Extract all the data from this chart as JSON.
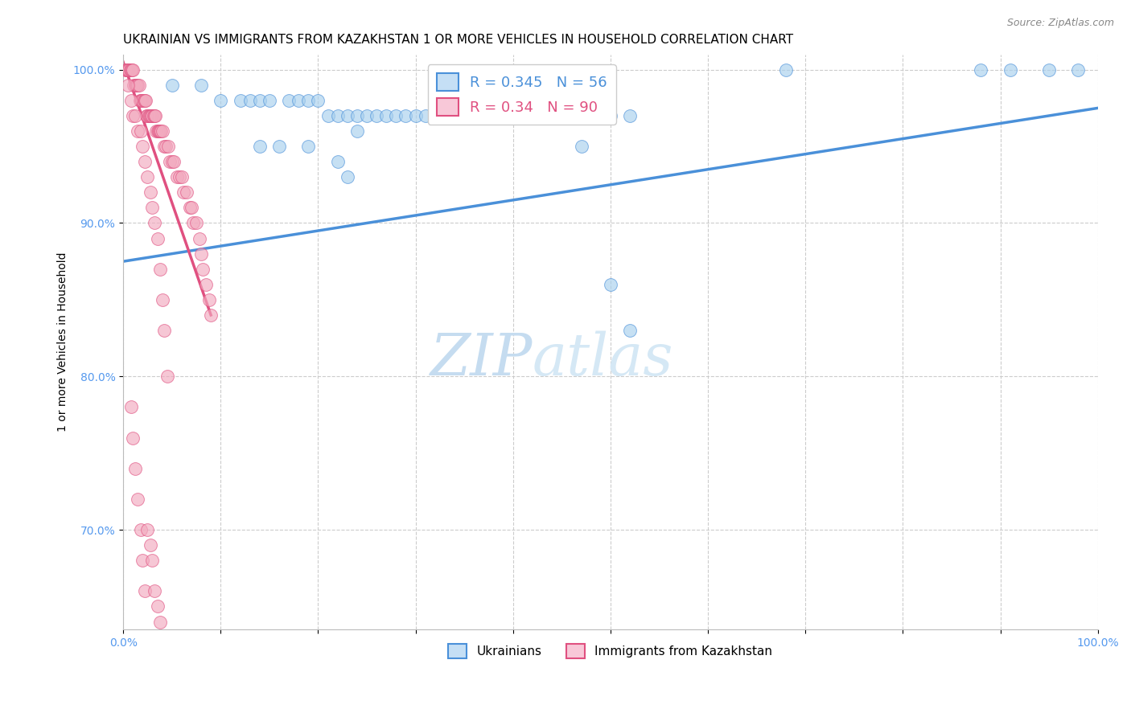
{
  "title": "UKRAINIAN VS IMMIGRANTS FROM KAZAKHSTAN 1 OR MORE VEHICLES IN HOUSEHOLD CORRELATION CHART",
  "source": "Source: ZipAtlas.com",
  "ylabel": "1 or more Vehicles in Household",
  "xlabel": "",
  "watermark_zip": "ZIP",
  "watermark_atlas": "atlas",
  "blue_R": 0.345,
  "blue_N": 56,
  "pink_R": 0.34,
  "pink_N": 90,
  "blue_color": "#A8D0EE",
  "pink_color": "#F2AABF",
  "trendline_blue": "#4A90D9",
  "trendline_pink": "#E05080",
  "legend_blue_face": "#C5DFF5",
  "legend_pink_face": "#F8C8D8",
  "xlim": [
    0.0,
    1.0
  ],
  "ylim": [
    0.635,
    1.01
  ],
  "x_ticks": [
    0.0,
    0.1,
    0.2,
    0.3,
    0.4,
    0.5,
    0.6,
    0.7,
    0.8,
    0.9,
    1.0
  ],
  "x_tick_labels": [
    "0.0%",
    "",
    "",
    "",
    "",
    "",
    "",
    "",
    "",
    "",
    "100.0%"
  ],
  "y_ticks": [
    0.7,
    0.8,
    0.9,
    1.0
  ],
  "y_tick_labels": [
    "70.0%",
    "80.0%",
    "90.0%",
    "100.0%"
  ],
  "blue_x": [
    0.05,
    0.08,
    0.1,
    0.12,
    0.13,
    0.14,
    0.15,
    0.17,
    0.18,
    0.19,
    0.2,
    0.21,
    0.22,
    0.23,
    0.24,
    0.25,
    0.26,
    0.27,
    0.28,
    0.29,
    0.3,
    0.31,
    0.32,
    0.33,
    0.34,
    0.35,
    0.36,
    0.37,
    0.38,
    0.39,
    0.4,
    0.41,
    0.42,
    0.43,
    0.44,
    0.45,
    0.46,
    0.47,
    0.48,
    0.49,
    0.5,
    0.52,
    0.14,
    0.16,
    0.19,
    0.22,
    0.68,
    0.88,
    0.91,
    0.95,
    0.98,
    0.23,
    0.24,
    0.47,
    0.5,
    0.52
  ],
  "blue_y": [
    0.99,
    0.99,
    0.98,
    0.98,
    0.98,
    0.98,
    0.98,
    0.98,
    0.98,
    0.98,
    0.98,
    0.97,
    0.97,
    0.97,
    0.97,
    0.97,
    0.97,
    0.97,
    0.97,
    0.97,
    0.97,
    0.97,
    0.97,
    0.97,
    0.97,
    0.97,
    0.97,
    0.97,
    0.97,
    0.97,
    0.97,
    0.97,
    0.97,
    0.97,
    0.97,
    0.97,
    0.97,
    0.97,
    0.97,
    0.97,
    0.97,
    0.97,
    0.95,
    0.95,
    0.95,
    0.94,
    1.0,
    1.0,
    1.0,
    1.0,
    1.0,
    0.93,
    0.96,
    0.95,
    0.86,
    0.83
  ],
  "pink_x": [
    0.002,
    0.003,
    0.004,
    0.005,
    0.006,
    0.007,
    0.008,
    0.009,
    0.01,
    0.011,
    0.012,
    0.013,
    0.014,
    0.015,
    0.016,
    0.017,
    0.018,
    0.019,
    0.02,
    0.021,
    0.022,
    0.023,
    0.024,
    0.025,
    0.026,
    0.027,
    0.028,
    0.029,
    0.03,
    0.031,
    0.032,
    0.033,
    0.034,
    0.035,
    0.036,
    0.037,
    0.038,
    0.039,
    0.04,
    0.042,
    0.044,
    0.046,
    0.048,
    0.05,
    0.052,
    0.055,
    0.058,
    0.06,
    0.062,
    0.065,
    0.068,
    0.07,
    0.072,
    0.075,
    0.078,
    0.08,
    0.082,
    0.085,
    0.088,
    0.09,
    0.005,
    0.008,
    0.01,
    0.012,
    0.015,
    0.018,
    0.02,
    0.022,
    0.025,
    0.028,
    0.03,
    0.032,
    0.035,
    0.038,
    0.04,
    0.042,
    0.045,
    0.008,
    0.01,
    0.012,
    0.015,
    0.018,
    0.02,
    0.022,
    0.025,
    0.028,
    0.03,
    0.032,
    0.035,
    0.038
  ],
  "pink_y": [
    1.0,
    1.0,
    1.0,
    1.0,
    1.0,
    1.0,
    1.0,
    1.0,
    1.0,
    0.99,
    0.99,
    0.99,
    0.99,
    0.99,
    0.99,
    0.98,
    0.98,
    0.98,
    0.98,
    0.98,
    0.98,
    0.98,
    0.97,
    0.97,
    0.97,
    0.97,
    0.97,
    0.97,
    0.97,
    0.97,
    0.97,
    0.97,
    0.96,
    0.96,
    0.96,
    0.96,
    0.96,
    0.96,
    0.96,
    0.95,
    0.95,
    0.95,
    0.94,
    0.94,
    0.94,
    0.93,
    0.93,
    0.93,
    0.92,
    0.92,
    0.91,
    0.91,
    0.9,
    0.9,
    0.89,
    0.88,
    0.87,
    0.86,
    0.85,
    0.84,
    0.99,
    0.98,
    0.97,
    0.97,
    0.96,
    0.96,
    0.95,
    0.94,
    0.93,
    0.92,
    0.91,
    0.9,
    0.89,
    0.87,
    0.85,
    0.83,
    0.8,
    0.78,
    0.76,
    0.74,
    0.72,
    0.7,
    0.68,
    0.66,
    0.7,
    0.69,
    0.68,
    0.66,
    0.65,
    0.64
  ],
  "blue_trend_x0": 0.0,
  "blue_trend_x1": 1.0,
  "blue_trend_y0": 0.875,
  "blue_trend_y1": 0.975,
  "pink_trend_x0": 0.0,
  "pink_trend_x1": 0.09,
  "pink_trend_y0": 1.005,
  "pink_trend_y1": 0.84,
  "grid_color": "#CCCCCC",
  "bg_color": "#FFFFFF",
  "title_fontsize": 11,
  "label_fontsize": 10,
  "tick_fontsize": 10,
  "tick_color": "#5599EE",
  "watermark_color_zip": "#C5DCF0",
  "watermark_color_atlas": "#D5E8F5"
}
